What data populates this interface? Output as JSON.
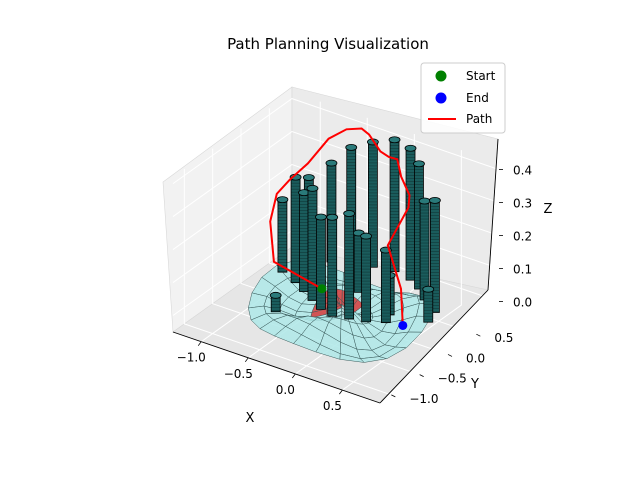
{
  "chart_data": {
    "type": "3d-scatter-line",
    "title": "Path Planning Visualization",
    "xlabel": "X",
    "ylabel": "Y",
    "zlabel": "Z",
    "x_ticks": [
      "−1.0",
      "−0.5",
      "0.0",
      "0.5"
    ],
    "y_ticks": [
      "−1.0",
      "−0.5",
      "0.0",
      "0.5"
    ],
    "z_ticks": [
      "0.0",
      "0.1",
      "0.2",
      "0.3",
      "0.4"
    ],
    "xlim": [
      -1.3,
      0.9
    ],
    "ylim": [
      -1.2,
      0.9
    ],
    "zlim": [
      -0.05,
      0.42
    ],
    "legend": {
      "placement": "upper right",
      "entries": [
        {
          "label": "Start",
          "marker": "circle",
          "color": "#008000"
        },
        {
          "label": "End",
          "marker": "circle",
          "color": "#0000ff"
        },
        {
          "label": "Path",
          "marker": "line",
          "color": "#ff0000"
        }
      ]
    },
    "start": {
      "x": -0.5,
      "y": 0.1,
      "z": 0.0,
      "color": "#008000"
    },
    "end": {
      "x": 0.45,
      "y": -0.05,
      "z": 0.0,
      "color": "#0000ff"
    },
    "path": {
      "name": "Path",
      "color": "#ff0000",
      "x": [
        -0.5,
        -0.95,
        -1.05,
        -0.95,
        -0.9,
        -0.8,
        -0.7,
        -0.6,
        -0.5,
        -0.45,
        -0.3,
        -0.15,
        0.0,
        0.1,
        0.25,
        0.3,
        0.2,
        0.4,
        0.45
      ],
      "y": [
        0.1,
        0.0,
        0.1,
        0.05,
        0.2,
        0.35,
        0.55,
        0.7,
        0.8,
        0.85,
        0.8,
        0.7,
        0.6,
        0.5,
        0.4,
        0.3,
        0.1,
        0.0,
        -0.05
      ],
      "z": [
        0.0,
        0.05,
        0.15,
        0.25,
        0.28,
        0.32,
        0.38,
        0.4,
        0.4,
        0.38,
        0.35,
        0.36,
        0.38,
        0.35,
        0.32,
        0.3,
        0.2,
        0.1,
        0.0
      ]
    },
    "terrain": {
      "color": "#aee8e8",
      "edge_color": "#3a5a5a",
      "base_color": "#cc3a3a"
    },
    "obstacles": {
      "color": "#1a5c5c",
      "edge_color": "#000000",
      "positions": [
        {
          "x": -0.85,
          "y": 0.45,
          "h": 0.26
        },
        {
          "x": -0.7,
          "y": 0.6,
          "h": 0.3
        },
        {
          "x": -0.55,
          "y": 0.7,
          "h": 0.35
        },
        {
          "x": -0.35,
          "y": 0.75,
          "h": 0.38
        },
        {
          "x": -0.15,
          "y": 0.8,
          "h": 0.4
        },
        {
          "x": 0.05,
          "y": 0.75,
          "h": 0.4
        },
        {
          "x": 0.2,
          "y": 0.65,
          "h": 0.38
        },
        {
          "x": 0.35,
          "y": 0.5,
          "h": 0.3
        },
        {
          "x": 0.55,
          "y": 0.35,
          "h": 0.34
        },
        {
          "x": 0.6,
          "y": 0.15,
          "h": 0.1
        },
        {
          "x": -0.95,
          "y": 0.15,
          "h": 0.22
        },
        {
          "x": -0.75,
          "y": 0.05,
          "h": 0.32
        },
        {
          "x": -0.6,
          "y": -0.05,
          "h": 0.3
        },
        {
          "x": -0.45,
          "y": -0.15,
          "h": 0.34
        },
        {
          "x": -0.3,
          "y": -0.25,
          "h": 0.28
        },
        {
          "x": -0.15,
          "y": -0.3,
          "h": 0.3
        },
        {
          "x": 0.0,
          "y": -0.25,
          "h": 0.32
        },
        {
          "x": 0.15,
          "y": -0.2,
          "h": 0.26
        },
        {
          "x": 0.3,
          "y": -0.1,
          "h": 0.22
        },
        {
          "x": -0.2,
          "y": 0.25,
          "h": 0.18
        },
        {
          "x": -0.6,
          "y": -0.55,
          "h": 0.05
        },
        {
          "x": 0.25,
          "y": 0.05,
          "h": 0.12
        }
      ]
    }
  }
}
